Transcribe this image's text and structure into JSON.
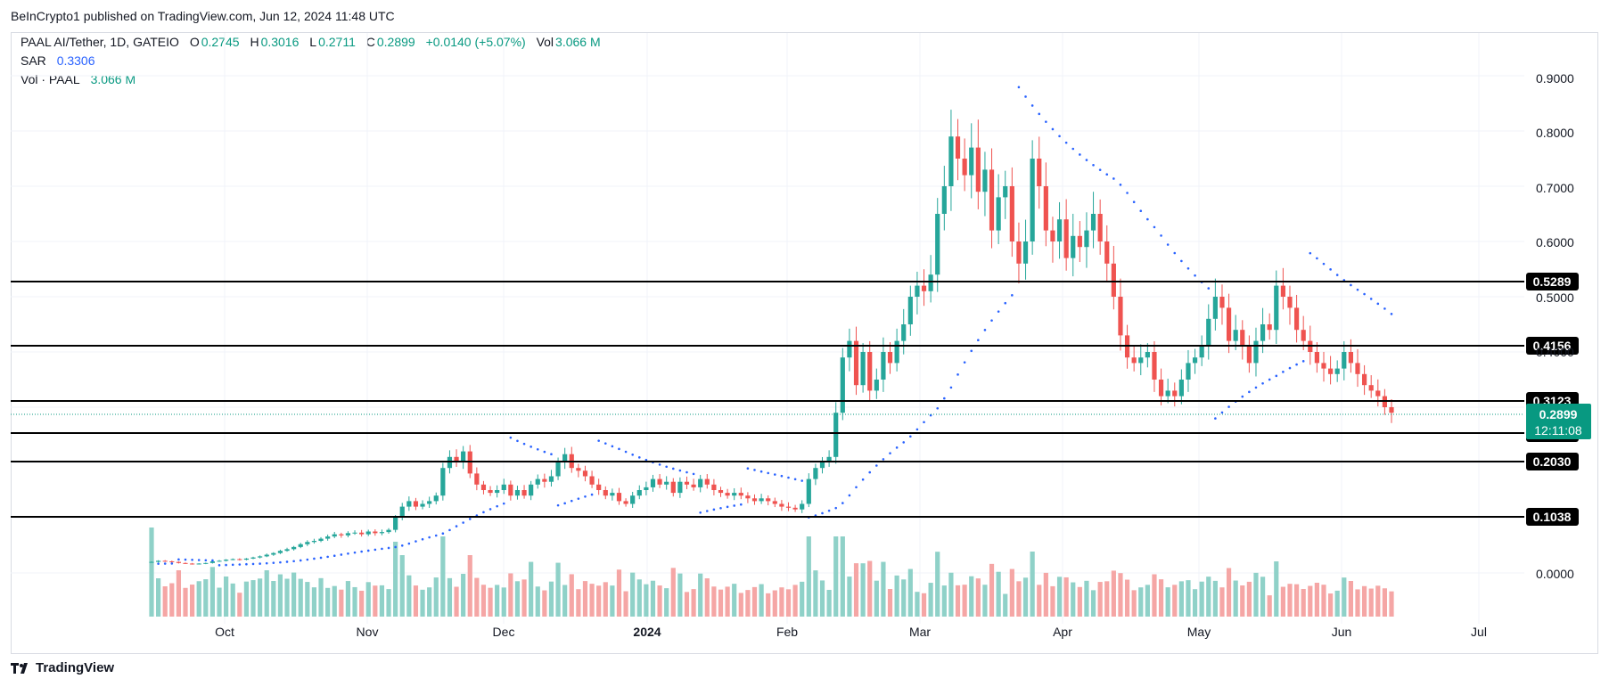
{
  "header": {
    "published": "BeInCrypto1 published on TradingView.com, Jun 12, 2024 11:48 UTC"
  },
  "legend": {
    "symbol": "PAAL AI/Tether, 1D, GATEIO",
    "o_label": "O",
    "o_value": "0.2745",
    "h_label": "H",
    "h_value": "0.3016",
    "l_label": "L",
    "l_value": "0.2711",
    "c_label": "C",
    "c_value": "0.2899",
    "change": "+0.0140 (+5.07%)",
    "vol_label": "Vol",
    "vol_value": "3.066 M",
    "sar_label": "SAR",
    "sar_value": "0.3306",
    "volpaal_label": "Vol · PAAL",
    "volpaal_value": "3.066 M"
  },
  "footer": {
    "brand": "TradingView"
  },
  "colors": {
    "up": "#26a69a",
    "down": "#ef5350",
    "sar": "#2962ff",
    "last_price": "#089981",
    "vol_up": "#8fd1c8",
    "vol_down": "#f5a6a5"
  },
  "chart_data": {
    "type": "candlestick",
    "y_ticks": [
      "0.9000",
      "0.8000",
      "0.7000",
      "0.6000",
      "0.5000",
      "0.4000",
      "0.0000"
    ],
    "x_ticks": [
      "Oct",
      "Nov",
      "Dec",
      "2024",
      "Feb",
      "Mar",
      "Apr",
      "May",
      "Jun",
      "Jul"
    ],
    "levels": [
      "0.5289",
      "0.4156",
      "0.3123",
      "0.2556",
      "0.2030",
      "0.1038"
    ],
    "last_price": "0.2899",
    "countdown": "12:11:08",
    "closes": [
      0.02,
      0.022,
      0.021,
      0.02,
      0.018,
      0.017,
      0.016,
      0.017,
      0.018,
      0.021,
      0.022,
      0.024,
      0.025,
      0.024,
      0.026,
      0.028,
      0.03,
      0.033,
      0.036,
      0.04,
      0.043,
      0.047,
      0.052,
      0.056,
      0.058,
      0.062,
      0.066,
      0.07,
      0.068,
      0.072,
      0.073,
      0.07,
      0.075,
      0.072,
      0.074,
      0.078,
      0.1,
      0.12,
      0.13,
      0.12,
      0.125,
      0.13,
      0.14,
      0.19,
      0.21,
      0.2,
      0.22,
      0.18,
      0.16,
      0.15,
      0.145,
      0.15,
      0.16,
      0.14,
      0.15,
      0.14,
      0.16,
      0.17,
      0.165,
      0.175,
      0.2,
      0.215,
      0.19,
      0.185,
      0.175,
      0.16,
      0.15,
      0.14,
      0.145,
      0.13,
      0.125,
      0.14,
      0.15,
      0.155,
      0.17,
      0.16,
      0.165,
      0.145,
      0.165,
      0.16,
      0.155,
      0.17,
      0.16,
      0.15,
      0.145,
      0.14,
      0.145,
      0.14,
      0.135,
      0.13,
      0.135,
      0.13,
      0.125,
      0.12,
      0.118,
      0.115,
      0.125,
      0.17,
      0.19,
      0.2,
      0.21,
      0.29,
      0.39,
      0.42,
      0.34,
      0.4,
      0.33,
      0.35,
      0.4,
      0.38,
      0.42,
      0.45,
      0.5,
      0.52,
      0.51,
      0.54,
      0.65,
      0.7,
      0.79,
      0.75,
      0.72,
      0.77,
      0.69,
      0.73,
      0.62,
      0.68,
      0.7,
      0.6,
      0.56,
      0.6,
      0.75,
      0.7,
      0.62,
      0.6,
      0.64,
      0.57,
      0.61,
      0.59,
      0.62,
      0.65,
      0.6,
      0.56,
      0.5,
      0.43,
      0.39,
      0.38,
      0.39,
      0.4,
      0.35,
      0.32,
      0.33,
      0.32,
      0.35,
      0.38,
      0.39,
      0.41,
      0.46,
      0.5,
      0.48,
      0.42,
      0.44,
      0.41,
      0.38,
      0.42,
      0.45,
      0.44,
      0.52,
      0.5,
      0.48,
      0.44,
      0.42,
      0.4,
      0.38,
      0.37,
      0.36,
      0.37,
      0.4,
      0.38,
      0.36,
      0.34,
      0.33,
      0.32,
      0.3,
      0.29
    ]
  }
}
